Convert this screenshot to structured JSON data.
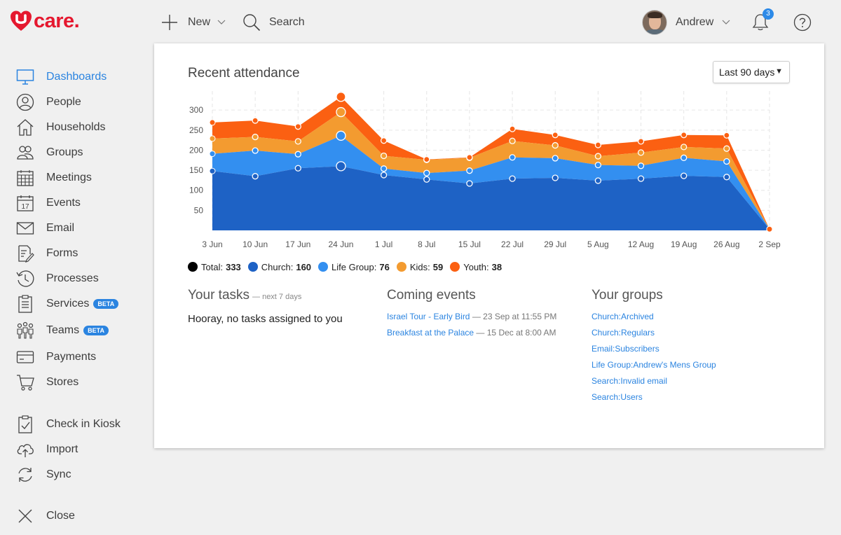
{
  "brand": {
    "name": "care",
    "accent": "#e5182f"
  },
  "topbar": {
    "new_label": "New",
    "search_label": "Search",
    "user_name": "Andrew",
    "notification_count": "3"
  },
  "sidebar": {
    "items": [
      {
        "label": "Dashboards",
        "icon": "monitor-icon",
        "active": true
      },
      {
        "label": "People",
        "icon": "person-icon"
      },
      {
        "label": "Households",
        "icon": "house-icon"
      },
      {
        "label": "Groups",
        "icon": "group-icon"
      },
      {
        "label": "Meetings",
        "icon": "calendar-grid-icon"
      },
      {
        "label": "Events",
        "icon": "calendar-17-icon",
        "icon_text": "17"
      },
      {
        "label": "Email",
        "icon": "envelope-icon"
      },
      {
        "label": "Forms",
        "icon": "form-icon"
      },
      {
        "label": "Processes",
        "icon": "history-icon"
      },
      {
        "label": "Services",
        "icon": "clipboard-icon",
        "badge": "BETA"
      },
      {
        "label": "Teams",
        "icon": "team-icon",
        "badge": "BETA"
      },
      {
        "label": "Payments",
        "icon": "card-icon"
      },
      {
        "label": "Stores",
        "icon": "cart-icon"
      },
      {
        "label": "Check in Kiosk",
        "icon": "checklist-icon"
      },
      {
        "label": "Import",
        "icon": "cloud-upload-icon"
      },
      {
        "label": "Sync",
        "icon": "sync-icon"
      },
      {
        "label": "Close",
        "icon": "close-icon"
      }
    ]
  },
  "dashboard": {
    "title": "Recent attendance",
    "range": "Last 90 days"
  },
  "chart_data": {
    "type": "area",
    "stacked": true,
    "categories": [
      "3 Jun",
      "10 Jun",
      "17 Jun",
      "24 Jun",
      "1 Jul",
      "8 Jul",
      "15 Jul",
      "22 Jul",
      "29 Jul",
      "5 Aug",
      "12 Aug",
      "19 Aug",
      "26 Aug",
      "2 Sep"
    ],
    "yticks": [
      50,
      100,
      150,
      200,
      250,
      300
    ],
    "ylim": [
      0,
      330
    ],
    "grid": true,
    "legend_position": "bottom-left",
    "series": [
      {
        "name": "Church",
        "color": "#1e62c5",
        "values": [
          148,
          135,
          155,
          160,
          138,
          127,
          117,
          129,
          131,
          124,
          129,
          136,
          133,
          3
        ]
      },
      {
        "name": "Life Group",
        "color": "#338ff0",
        "values": [
          43,
          64,
          35,
          76,
          16,
          16,
          32,
          53,
          49,
          39,
          32,
          45,
          39,
          0
        ]
      },
      {
        "name": "Kids",
        "color": "#f39b30",
        "values": [
          38,
          34,
          32,
          59,
          32,
          33,
          32,
          41,
          32,
          22,
          33,
          27,
          32,
          0
        ]
      },
      {
        "name": "Youth",
        "color": "#fb6012",
        "values": [
          40,
          41,
          37,
          38,
          38,
          1,
          1,
          30,
          26,
          28,
          28,
          30,
          33,
          0
        ]
      }
    ],
    "highlight_index": 3,
    "totals": {
      "Total": "333",
      "Church": "160",
      "Life Group": "76",
      "Kids": "59",
      "Youth": "38"
    }
  },
  "legend": [
    {
      "name": "Total",
      "value": "333",
      "color": "#000000"
    },
    {
      "name": "Church",
      "value": "160",
      "color": "#1e62c5"
    },
    {
      "name": "Life Group",
      "value": "76",
      "color": "#338ff0"
    },
    {
      "name": "Kids",
      "value": "59",
      "color": "#f39b30"
    },
    {
      "name": "Youth",
      "value": "38",
      "color": "#fb6012"
    }
  ],
  "tasks": {
    "title": "Your tasks",
    "subtitle": "— next 7 days",
    "empty": "Hooray, no tasks assigned to you"
  },
  "events": {
    "title": "Coming events",
    "items": [
      {
        "name": "Israel Tour - Early Bird",
        "when": "— 23 Sep at 11:55 PM"
      },
      {
        "name": "Breakfast at the Palace",
        "when": "— 15 Dec at 8:00 AM"
      }
    ]
  },
  "groups": {
    "title": "Your groups",
    "items": [
      "Church:Archived",
      "Church:Regulars",
      "Email:Subscribers",
      "Life Group:Andrew's Mens Group",
      "Search:Invalid email",
      "Search:Users"
    ]
  }
}
